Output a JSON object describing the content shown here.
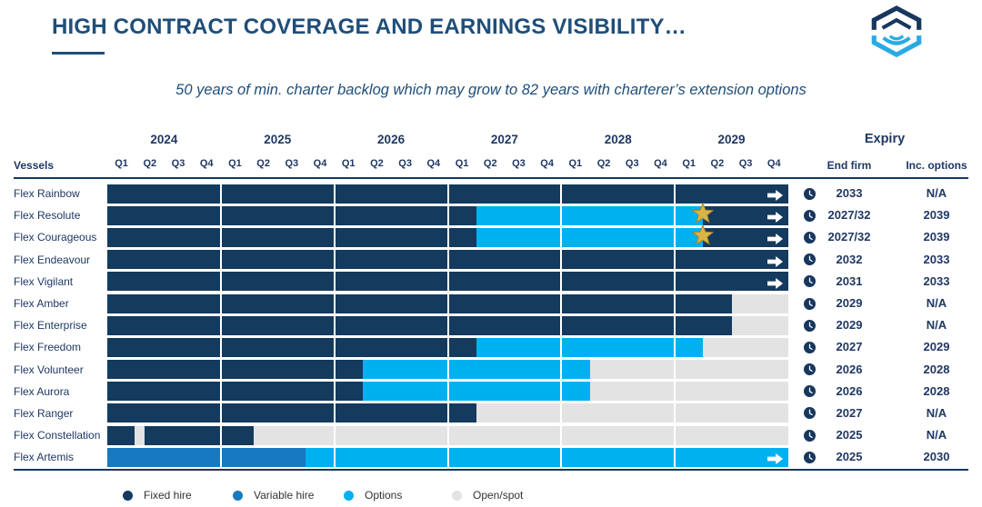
{
  "colors": {
    "fixed": "#143A5E",
    "variable": "#1779BF",
    "options": "#00B1F0",
    "open": "#E3E3E3",
    "accent": "#1F4E79",
    "text": "#1F3864",
    "star": "#D9B545",
    "star_edge": "#A8842C",
    "logo_dark": "#17375E",
    "logo_cyan": "#29ABE2"
  },
  "header": {
    "title": "HIGH CONTRACT COVERAGE AND EARNINGS VISIBILITY…",
    "subtitle": "50 years of min. charter backlog which may grow to 82 years with charterer’s extension options"
  },
  "icons": {
    "logo": "flex-lng-logo",
    "clock": "clock-icon",
    "arrow": "continuation-arrow-icon",
    "star": "extension-option-star-icon"
  },
  "table": {
    "vessels_header": "Vessels",
    "expiry_header": "Expiry",
    "end_firm_header": "End firm",
    "inc_options_header": "Inc. options"
  },
  "legend": [
    {
      "label": "Fixed hire",
      "key": "fixed"
    },
    {
      "label": "Variable hire",
      "key": "variable"
    },
    {
      "label": "Options",
      "key": "options"
    },
    {
      "label": "Open/spot",
      "key": "open"
    }
  ],
  "chart_data": {
    "type": "bar",
    "subtype": "horizontal-gantt",
    "title": "Contract coverage by vessel, quarters 2024 Q1 – 2029 Q4",
    "years": [
      "2024",
      "2025",
      "2026",
      "2027",
      "2028",
      "2029"
    ],
    "quarter_labels": [
      "Q1",
      "Q2",
      "Q3",
      "Q4"
    ],
    "total_quarters": 24,
    "legend": [
      "Fixed hire",
      "Variable hire",
      "Options",
      "Open/spot"
    ],
    "rows": [
      {
        "vessel": "Flex Rainbow",
        "segments": [
          {
            "type": "fixed",
            "quarters": 24
          }
        ],
        "arrow": true,
        "star_at_quarter": null,
        "end_firm": "2033",
        "inc_options": "N/A"
      },
      {
        "vessel": "Flex Resolute",
        "segments": [
          {
            "type": "fixed",
            "quarters": 13
          },
          {
            "type": "options",
            "quarters": 8
          },
          {
            "type": "fixed",
            "quarters": 3
          }
        ],
        "arrow": true,
        "star_at_quarter": 21,
        "end_firm": "2027/32",
        "inc_options": "2039"
      },
      {
        "vessel": "Flex Courageous",
        "segments": [
          {
            "type": "fixed",
            "quarters": 13
          },
          {
            "type": "options",
            "quarters": 8
          },
          {
            "type": "fixed",
            "quarters": 3
          }
        ],
        "arrow": true,
        "star_at_quarter": 21,
        "end_firm": "2027/32",
        "inc_options": "2039"
      },
      {
        "vessel": "Flex Endeavour",
        "segments": [
          {
            "type": "fixed",
            "quarters": 24
          }
        ],
        "arrow": true,
        "star_at_quarter": null,
        "end_firm": "2032",
        "inc_options": "2033"
      },
      {
        "vessel": "Flex Vigilant",
        "segments": [
          {
            "type": "fixed",
            "quarters": 24
          }
        ],
        "arrow": true,
        "star_at_quarter": null,
        "end_firm": "2031",
        "inc_options": "2033"
      },
      {
        "vessel": "Flex Amber",
        "segments": [
          {
            "type": "fixed",
            "quarters": 22
          },
          {
            "type": "open",
            "quarters": 2
          }
        ],
        "arrow": false,
        "star_at_quarter": null,
        "end_firm": "2029",
        "inc_options": "N/A"
      },
      {
        "vessel": "Flex Enterprise",
        "segments": [
          {
            "type": "fixed",
            "quarters": 22
          },
          {
            "type": "open",
            "quarters": 2
          }
        ],
        "arrow": false,
        "star_at_quarter": null,
        "end_firm": "2029",
        "inc_options": "N/A"
      },
      {
        "vessel": "Flex Freedom",
        "segments": [
          {
            "type": "fixed",
            "quarters": 13
          },
          {
            "type": "options",
            "quarters": 8
          },
          {
            "type": "open",
            "quarters": 3
          }
        ],
        "arrow": false,
        "star_at_quarter": null,
        "end_firm": "2027",
        "inc_options": "2029"
      },
      {
        "vessel": "Flex Volunteer",
        "segments": [
          {
            "type": "fixed",
            "quarters": 9
          },
          {
            "type": "options",
            "quarters": 8
          },
          {
            "type": "open",
            "quarters": 7
          }
        ],
        "arrow": false,
        "star_at_quarter": null,
        "end_firm": "2026",
        "inc_options": "2028"
      },
      {
        "vessel": "Flex Aurora",
        "segments": [
          {
            "type": "fixed",
            "quarters": 9
          },
          {
            "type": "options",
            "quarters": 8
          },
          {
            "type": "open",
            "quarters": 7
          }
        ],
        "arrow": false,
        "star_at_quarter": null,
        "end_firm": "2026",
        "inc_options": "2028"
      },
      {
        "vessel": "Flex Ranger",
        "segments": [
          {
            "type": "fixed",
            "quarters": 13
          },
          {
            "type": "open",
            "quarters": 11
          }
        ],
        "arrow": false,
        "star_at_quarter": null,
        "end_firm": "2027",
        "inc_options": "N/A"
      },
      {
        "vessel": "Flex Constellation",
        "segments": [
          {
            "type": "fixed",
            "quarters": 0.95
          },
          {
            "type": "open",
            "quarters": 0.35
          },
          {
            "type": "fixed",
            "quarters": 3.85
          },
          {
            "type": "open",
            "quarters": 18.85
          }
        ],
        "arrow": false,
        "star_at_quarter": null,
        "end_firm": "2025",
        "inc_options": "N/A"
      },
      {
        "vessel": "Flex Artemis",
        "segments": [
          {
            "type": "variable",
            "quarters": 7
          },
          {
            "type": "options",
            "quarters": 17
          }
        ],
        "arrow": true,
        "star_at_quarter": null,
        "end_firm": "2025",
        "inc_options": "2030"
      }
    ]
  }
}
